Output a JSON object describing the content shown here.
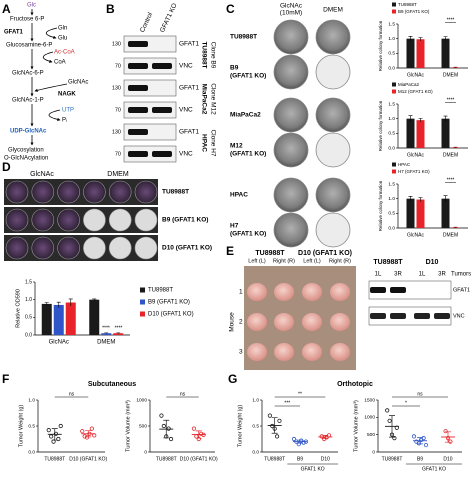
{
  "panel_labels": [
    "A",
    "B",
    "C",
    "D",
    "E",
    "F",
    "G"
  ],
  "panel_a": {
    "pathway": [
      "Glc",
      "Fructose 6-P",
      "GFAT1",
      "Gln",
      "Glu",
      "Glucosamine-6-P",
      "Ac-CoA",
      "CoA",
      "GlcNAc-6-P",
      "GlcNAc",
      "NAGK",
      "GlcNAc-1-P",
      "UTP",
      "Pᵢ",
      "UDP-GlcNAc",
      "Glycosylation",
      "O-GlcNAcylation"
    ]
  },
  "panel_b": {
    "columns": [
      "Control",
      "GFAT1 KO"
    ],
    "blocks": [
      {
        "markers": [
          "130",
          "70"
        ],
        "bands": [
          "GFAT1",
          "VNC"
        ],
        "cell_line": "TU8988T",
        "clone": "Clone B9"
      },
      {
        "markers": [
          "130",
          "70"
        ],
        "bands": [
          "GFAT1",
          "VNC"
        ],
        "cell_line": "MiaPaCa2",
        "clone": "Clone M12"
      },
      {
        "markers": [
          "130",
          "70"
        ],
        "bands": [
          "GFAT1",
          "VNC"
        ],
        "cell_line": "HPAC",
        "clone": "Clone H7"
      }
    ]
  },
  "panel_c": {
    "headers": [
      "GlcNAc",
      "(10mM)",
      "DMEM"
    ],
    "rows": [
      [
        "TU8988T"
      ],
      [
        "B9",
        "(GFAT1 KO)"
      ],
      [
        "MiaPaCa2"
      ],
      [
        "M12",
        "(GFAT1 KO)"
      ],
      [
        "HPAC"
      ],
      [
        "H7",
        "(GFAT1 KO)"
      ]
    ]
  },
  "panel_d": {
    "headers": [
      "GlcNAc",
      "DMEM"
    ],
    "rows": [
      "TU8988T",
      "B9 (GFAT1 KO)",
      "D10 (GFAT1 KO)"
    ]
  },
  "panel_e": {
    "groups": [
      "TU8988T",
      "D10 (GFAT1 KO)"
    ],
    "sides": [
      "Left (L)",
      "Right (R)",
      "Left (L)",
      "Right (R)"
    ],
    "axis": "Mouse",
    "mice": [
      "1",
      "2",
      "3"
    ],
    "blot_groups": [
      "TU8988T",
      "D10"
    ],
    "lanes": [
      "1L",
      "3R",
      "1L",
      "3R"
    ],
    "lanes_title": "Tumors",
    "bands": [
      "GFAT1",
      "VNC"
    ]
  },
  "panel_f": {
    "title": "Subcutaneous"
  },
  "panel_g": {
    "title": "Orthotopic"
  },
  "chart_data": [
    {
      "type": "bar",
      "ylabel": "Relative colony formation",
      "categories": [
        "GlcNAc",
        "DMEM"
      ],
      "series": [
        {
          "name": "TU8988T",
          "color": "#1a1a1a",
          "values": [
            1.0,
            1.0
          ],
          "errors": [
            0.08,
            0.07
          ]
        },
        {
          "name": "B9 (GFAT1 KO)",
          "color": "#e8242a",
          "values": [
            0.98,
            0.02
          ],
          "errors": [
            0.06,
            0.01
          ]
        }
      ],
      "ylim": [
        0,
        1.5
      ],
      "yticks": [
        {
          "value": 0,
          "label": "0.0"
        },
        0.5,
        {
          "value": 1,
          "label": "1.0"
        },
        1.5
      ],
      "annotations": [
        "****"
      ]
    },
    {
      "type": "bar",
      "ylabel": "Relative colony formation",
      "categories": [
        "GlcNAc",
        "DMEM"
      ],
      "series": [
        {
          "name": "MiaPaCa2",
          "color": "#1a1a1a",
          "values": [
            1.0,
            1.0
          ],
          "errors": [
            0.1,
            0.09
          ]
        },
        {
          "name": "M12 (GFAT1 KO)",
          "color": "#e8242a",
          "values": [
            0.95,
            0.02
          ],
          "errors": [
            0.06,
            0.01
          ]
        }
      ],
      "ylim": [
        0,
        1.5
      ],
      "yticks": [
        {
          "value": 0,
          "label": "0.0"
        },
        0.5,
        {
          "value": 1,
          "label": "1.0"
        },
        1.5
      ],
      "annotations": [
        "****"
      ]
    },
    {
      "type": "bar",
      "ylabel": "Relative colony formation",
      "categories": [
        "GlcNAc",
        "DMEM"
      ],
      "series": [
        {
          "name": "HPAC",
          "color": "#1a1a1a",
          "values": [
            1.0,
            1.0
          ],
          "errors": [
            0.08,
            0.1
          ]
        },
        {
          "name": "H7 (GFAT1 KO)",
          "color": "#e8242a",
          "values": [
            0.97,
            0.02
          ],
          "errors": [
            0.07,
            0.01
          ]
        }
      ],
      "ylim": [
        0,
        1.5
      ],
      "yticks": [
        {
          "value": 0,
          "label": "0.0"
        },
        0.5,
        {
          "value": 1,
          "label": "1.0"
        },
        1.5
      ],
      "annotations": [
        "****"
      ]
    },
    {
      "type": "bar",
      "ylabel": "Relative OD590",
      "categories": [
        "GlcNAc",
        "DMEM"
      ],
      "series": [
        {
          "name": "TU8988T",
          "color": "#1a1a1a",
          "values": [
            0.88,
            1.0
          ],
          "errors": [
            0.04,
            0.02
          ]
        },
        {
          "name": "B9 (GFAT1 KO)",
          "color": "#2f55c8",
          "values": [
            0.85,
            0.05
          ],
          "errors": [
            0.08,
            0.01
          ]
        },
        {
          "name": "D10 (GFAT1 KO)",
          "color": "#e8242a",
          "values": [
            0.92,
            0.05
          ],
          "errors": [
            0.1,
            0.01
          ]
        }
      ],
      "ylim": [
        0,
        1.5
      ],
      "yticks": [
        {
          "value": 0,
          "label": "0.0"
        },
        0.5,
        {
          "value": 1,
          "label": "1.0"
        },
        1.5
      ],
      "annotations": [
        "****",
        "****"
      ]
    },
    {
      "type": "dot",
      "ylabel": "Tumor Weight (g)",
      "categories": [
        "TU8988T",
        "D10 (GFAT1 KO)"
      ],
      "colors": [
        "#1a1a1a",
        "#e8242a"
      ],
      "points": [
        [
          0.42,
          0.3,
          0.2,
          0.35,
          0.25,
          0.5
        ],
        [
          0.4,
          0.3,
          0.28,
          0.35,
          0.45,
          0.32
        ]
      ],
      "means": [
        0.34,
        0.35
      ],
      "errors": [
        0.11,
        0.06
      ],
      "ylim": [
        0,
        1.0
      ],
      "yticks": [
        {
          "value": 0,
          "label": "0.0"
        },
        0.5,
        {
          "value": 1,
          "label": "1.0"
        }
      ],
      "annotations": [
        "ns"
      ]
    },
    {
      "type": "dot",
      "ylabel": "Tumor Volume (mm³)",
      "categories": [
        "TU8988T",
        "D10 (GFAT1 KO)"
      ],
      "colors": [
        "#1a1a1a",
        "#e8242a"
      ],
      "points": [
        [
          700,
          500,
          300,
          450,
          250
        ],
        [
          450,
          300,
          250,
          350,
          330
        ]
      ],
      "means": [
        440,
        336
      ],
      "errors": [
        170,
        70
      ],
      "ylim": [
        0,
        1000
      ],
      "yticks": [
        0,
        500,
        1000
      ],
      "annotations": [
        "ns"
      ]
    },
    {
      "type": "dot",
      "ylabel": "Tumor Weight (g)",
      "categories": [
        "TU8988T",
        "B9",
        "D10"
      ],
      "group_label": "GFAT1 KO",
      "colors": [
        "#1a1a1a",
        "#2f55c8",
        "#e8242a"
      ],
      "points": [
        [
          0.7,
          0.5,
          0.45,
          0.3,
          0.6
        ],
        [
          0.25,
          0.2,
          0.15,
          0.22,
          0.18,
          0.2
        ],
        [
          0.3,
          0.25,
          0.28,
          0.32
        ]
      ],
      "means": [
        0.51,
        0.2,
        0.29
      ],
      "errors": [
        0.15,
        0.03,
        0.03
      ],
      "ylim": [
        0,
        1.0
      ],
      "yticks": [
        {
          "value": 0,
          "label": "0.0"
        },
        0.5,
        {
          "value": 1,
          "label": "1.0"
        }
      ],
      "annotations": [
        "**",
        "***"
      ]
    },
    {
      "type": "dot",
      "ylabel": "Tumor Volume (mm³)",
      "categories": [
        "TU8988T",
        "B9",
        "D10"
      ],
      "group_label": "GFAT1 KO",
      "colors": [
        "#1a1a1a",
        "#2f55c8",
        "#e8242a"
      ],
      "points": [
        [
          1200,
          900,
          500,
          400,
          700
        ],
        [
          450,
          300,
          250,
          350,
          400,
          200
        ],
        [
          600,
          400,
          300
        ]
      ],
      "means": [
        740,
        325,
        433
      ],
      "errors": [
        310,
        90,
        150
      ],
      "ylim": [
        0,
        1500
      ],
      "yticks": [
        0,
        500,
        1000,
        1500
      ],
      "annotations": [
        "ns",
        "*"
      ]
    }
  ]
}
